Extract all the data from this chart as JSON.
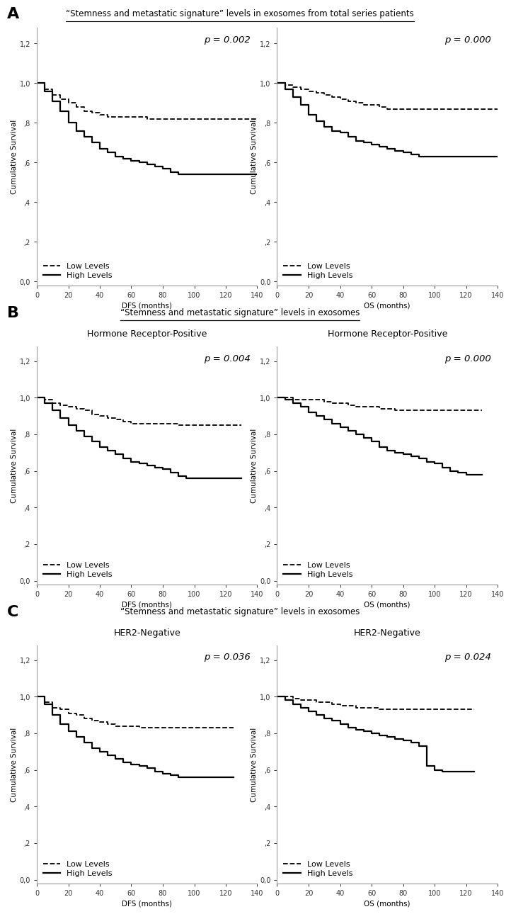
{
  "panel_titles": [
    "“Stemness and metastatic signature” levels in exosomes from total series patients",
    "“Stemness and metastatic signature” levels in exosomes",
    "“Stemness and metastatic signature” levels in exosomes"
  ],
  "panels": [
    {
      "label": "A",
      "subtitle_left": null,
      "subtitle_right": null,
      "plots": [
        {
          "p_value": "p = 0.002",
          "xlabel": "DFS (months)",
          "low_x": [
            0,
            5,
            10,
            15,
            20,
            25,
            30,
            35,
            40,
            45,
            50,
            55,
            60,
            65,
            70,
            75,
            80,
            85,
            90,
            95,
            100,
            105,
            110,
            115,
            120,
            125,
            130,
            135,
            140
          ],
          "low_y": [
            1.0,
            0.97,
            0.94,
            0.92,
            0.9,
            0.88,
            0.86,
            0.85,
            0.84,
            0.83,
            0.83,
            0.83,
            0.83,
            0.83,
            0.82,
            0.82,
            0.82,
            0.82,
            0.82,
            0.82,
            0.82,
            0.82,
            0.82,
            0.82,
            0.82,
            0.82,
            0.82,
            0.82,
            0.82
          ],
          "high_x": [
            0,
            5,
            10,
            15,
            20,
            25,
            30,
            35,
            40,
            45,
            50,
            55,
            60,
            65,
            70,
            75,
            80,
            85,
            90,
            95,
            100,
            105,
            110,
            115,
            120,
            125,
            130,
            135,
            140
          ],
          "high_y": [
            1.0,
            0.96,
            0.91,
            0.86,
            0.8,
            0.76,
            0.73,
            0.7,
            0.67,
            0.65,
            0.63,
            0.62,
            0.61,
            0.6,
            0.59,
            0.58,
            0.57,
            0.55,
            0.54,
            0.54,
            0.54,
            0.54,
            0.54,
            0.54,
            0.54,
            0.54,
            0.54,
            0.54,
            0.54
          ]
        },
        {
          "p_value": "p = 0.000",
          "xlabel": "OS (months)",
          "low_x": [
            0,
            5,
            10,
            15,
            20,
            25,
            30,
            35,
            40,
            45,
            50,
            55,
            60,
            65,
            70,
            75,
            80,
            85,
            90,
            95,
            100,
            105,
            110,
            115,
            120,
            125,
            130,
            135,
            140
          ],
          "low_y": [
            1.0,
            0.99,
            0.98,
            0.97,
            0.96,
            0.95,
            0.94,
            0.93,
            0.92,
            0.91,
            0.9,
            0.89,
            0.89,
            0.88,
            0.87,
            0.87,
            0.87,
            0.87,
            0.87,
            0.87,
            0.87,
            0.87,
            0.87,
            0.87,
            0.87,
            0.87,
            0.87,
            0.87,
            0.87
          ],
          "high_x": [
            0,
            5,
            10,
            15,
            20,
            25,
            30,
            35,
            40,
            45,
            50,
            55,
            60,
            65,
            70,
            75,
            80,
            85,
            90,
            95,
            100,
            105,
            110,
            115,
            120,
            125,
            130,
            135,
            140
          ],
          "high_y": [
            1.0,
            0.97,
            0.93,
            0.89,
            0.84,
            0.81,
            0.78,
            0.76,
            0.75,
            0.73,
            0.71,
            0.7,
            0.69,
            0.68,
            0.67,
            0.66,
            0.65,
            0.64,
            0.63,
            0.63,
            0.63,
            0.63,
            0.63,
            0.63,
            0.63,
            0.63,
            0.63,
            0.63,
            0.63
          ]
        }
      ]
    },
    {
      "label": "B",
      "subtitle_left": "Hormone Receptor-Positive",
      "subtitle_right": "Hormone Receptor-Positive",
      "plots": [
        {
          "p_value": "p = 0.004",
          "xlabel": "DFS (months)",
          "low_x": [
            0,
            5,
            10,
            15,
            20,
            25,
            30,
            35,
            40,
            45,
            50,
            55,
            60,
            65,
            70,
            75,
            80,
            85,
            90,
            95,
            100,
            105,
            110,
            115,
            120,
            125,
            130
          ],
          "low_y": [
            1.0,
            0.99,
            0.97,
            0.96,
            0.95,
            0.94,
            0.93,
            0.91,
            0.9,
            0.89,
            0.88,
            0.87,
            0.86,
            0.86,
            0.86,
            0.86,
            0.86,
            0.86,
            0.85,
            0.85,
            0.85,
            0.85,
            0.85,
            0.85,
            0.85,
            0.85,
            0.85
          ],
          "high_x": [
            0,
            5,
            10,
            15,
            20,
            25,
            30,
            35,
            40,
            45,
            50,
            55,
            60,
            65,
            70,
            75,
            80,
            85,
            90,
            95,
            100,
            105,
            110,
            115,
            120,
            125,
            130
          ],
          "high_y": [
            1.0,
            0.97,
            0.93,
            0.89,
            0.85,
            0.82,
            0.79,
            0.76,
            0.73,
            0.71,
            0.69,
            0.67,
            0.65,
            0.64,
            0.63,
            0.62,
            0.61,
            0.59,
            0.57,
            0.56,
            0.56,
            0.56,
            0.56,
            0.56,
            0.56,
            0.56,
            0.56
          ]
        },
        {
          "p_value": "p = 0.000",
          "xlabel": "OS (months)",
          "low_x": [
            0,
            5,
            10,
            15,
            20,
            25,
            30,
            35,
            40,
            45,
            50,
            55,
            60,
            65,
            70,
            75,
            80,
            85,
            90,
            95,
            100,
            105,
            110,
            115,
            120,
            125,
            130
          ],
          "low_y": [
            1.0,
            1.0,
            0.99,
            0.99,
            0.99,
            0.99,
            0.98,
            0.97,
            0.97,
            0.96,
            0.95,
            0.95,
            0.95,
            0.94,
            0.94,
            0.93,
            0.93,
            0.93,
            0.93,
            0.93,
            0.93,
            0.93,
            0.93,
            0.93,
            0.93,
            0.93,
            0.93
          ],
          "high_x": [
            0,
            5,
            10,
            15,
            20,
            25,
            30,
            35,
            40,
            45,
            50,
            55,
            60,
            65,
            70,
            75,
            80,
            85,
            90,
            95,
            100,
            105,
            110,
            115,
            120,
            125,
            130
          ],
          "high_y": [
            1.0,
            0.99,
            0.97,
            0.95,
            0.92,
            0.9,
            0.88,
            0.86,
            0.84,
            0.82,
            0.8,
            0.78,
            0.76,
            0.73,
            0.71,
            0.7,
            0.69,
            0.68,
            0.67,
            0.65,
            0.64,
            0.62,
            0.6,
            0.59,
            0.58,
            0.58,
            0.58
          ]
        }
      ]
    },
    {
      "label": "C",
      "subtitle_left": "HER2-Negative",
      "subtitle_right": "HER2-Negative",
      "plots": [
        {
          "p_value": "p = 0.036",
          "xlabel": "DFS (months)",
          "low_x": [
            0,
            5,
            10,
            15,
            20,
            25,
            30,
            35,
            40,
            45,
            50,
            55,
            60,
            65,
            70,
            75,
            80,
            85,
            90,
            95,
            100,
            105,
            110,
            115,
            120,
            125
          ],
          "low_y": [
            1.0,
            0.97,
            0.94,
            0.93,
            0.91,
            0.9,
            0.88,
            0.87,
            0.86,
            0.85,
            0.84,
            0.84,
            0.84,
            0.83,
            0.83,
            0.83,
            0.83,
            0.83,
            0.83,
            0.83,
            0.83,
            0.83,
            0.83,
            0.83,
            0.83,
            0.83
          ],
          "high_x": [
            0,
            5,
            10,
            15,
            20,
            25,
            30,
            35,
            40,
            45,
            50,
            55,
            60,
            65,
            70,
            75,
            80,
            85,
            90,
            95,
            100,
            105,
            110,
            115,
            120,
            125
          ],
          "high_y": [
            1.0,
            0.96,
            0.9,
            0.85,
            0.81,
            0.78,
            0.75,
            0.72,
            0.7,
            0.68,
            0.66,
            0.64,
            0.63,
            0.62,
            0.61,
            0.59,
            0.58,
            0.57,
            0.56,
            0.56,
            0.56,
            0.56,
            0.56,
            0.56,
            0.56,
            0.56
          ]
        },
        {
          "p_value": "p = 0.024",
          "xlabel": "OS (months)",
          "low_x": [
            0,
            5,
            10,
            15,
            20,
            25,
            30,
            35,
            40,
            45,
            50,
            55,
            60,
            65,
            70,
            75,
            80,
            85,
            90,
            95,
            100,
            105,
            110,
            115,
            120,
            125
          ],
          "low_y": [
            1.0,
            1.0,
            0.99,
            0.98,
            0.98,
            0.97,
            0.97,
            0.96,
            0.95,
            0.95,
            0.94,
            0.94,
            0.94,
            0.93,
            0.93,
            0.93,
            0.93,
            0.93,
            0.93,
            0.93,
            0.93,
            0.93,
            0.93,
            0.93,
            0.93,
            0.93
          ],
          "high_x": [
            0,
            5,
            10,
            15,
            20,
            25,
            30,
            35,
            40,
            45,
            50,
            55,
            60,
            65,
            70,
            75,
            80,
            85,
            90,
            95,
            100,
            105,
            110,
            115,
            120,
            125
          ],
          "high_y": [
            1.0,
            0.98,
            0.96,
            0.94,
            0.92,
            0.9,
            0.88,
            0.87,
            0.85,
            0.83,
            0.82,
            0.81,
            0.8,
            0.79,
            0.78,
            0.77,
            0.76,
            0.75,
            0.73,
            0.62,
            0.6,
            0.59,
            0.59,
            0.59,
            0.59,
            0.59
          ]
        }
      ]
    }
  ],
  "yticks": [
    0.0,
    0.2,
    0.4,
    0.6,
    0.8,
    1.0,
    1.2
  ],
  "ytick_labels": [
    "0,0",
    ",2",
    ",4",
    ",6",
    ",8",
    "1,0",
    "1,2"
  ],
  "xticks": [
    0,
    20,
    40,
    60,
    80,
    100,
    120,
    140
  ],
  "ylim": [
    -0.02,
    1.28
  ],
  "xlim": [
    0,
    140
  ],
  "ylabel": "Cumulative Survival",
  "bg_color": "#ffffff",
  "line_color": "#000000",
  "title_fontsize": 8.5,
  "subtitle_fontsize": 9,
  "axis_label_fontsize": 7.5,
  "tick_fontsize": 7,
  "pvalue_fontsize": 9.5,
  "legend_fontsize": 8,
  "panel_label_fontsize": 16
}
